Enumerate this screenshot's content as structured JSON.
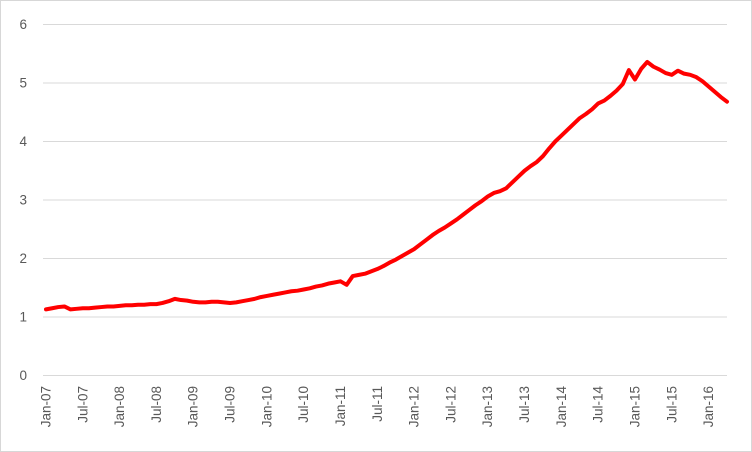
{
  "chart_data": {
    "type": "line",
    "title": "",
    "xlabel": "",
    "ylabel": "",
    "ylim": [
      0,
      6
    ],
    "y_tick_labels": [
      "0",
      "1",
      "2",
      "3",
      "4",
      "5",
      "6"
    ],
    "x_tick_labels": [
      "Jan-07",
      "Jul-07",
      "Jan-08",
      "Jul-08",
      "Jan-09",
      "Jul-09",
      "Jan-10",
      "Jul-10",
      "Jan-11",
      "Jul-11",
      "Jan-12",
      "Jul-12",
      "Jan-13",
      "Jul-13",
      "Jan-14",
      "Jul-14",
      "Jan-15",
      "Jul-15",
      "Jan-16"
    ],
    "x_tick_every_n_points": 6,
    "grid": "horizontal",
    "legend_position": "none",
    "series": [
      {
        "name": "red-line",
        "color": "#ff0000",
        "line_width": 4,
        "start_label": "Jan-07",
        "frequency": "monthly",
        "values": [
          1.13,
          1.15,
          1.17,
          1.18,
          1.13,
          1.14,
          1.15,
          1.15,
          1.16,
          1.17,
          1.18,
          1.18,
          1.19,
          1.2,
          1.2,
          1.21,
          1.21,
          1.22,
          1.22,
          1.24,
          1.27,
          1.31,
          1.29,
          1.28,
          1.26,
          1.25,
          1.25,
          1.26,
          1.26,
          1.25,
          1.24,
          1.25,
          1.27,
          1.29,
          1.31,
          1.34,
          1.36,
          1.38,
          1.4,
          1.42,
          1.44,
          1.45,
          1.47,
          1.49,
          1.52,
          1.54,
          1.57,
          1.59,
          1.61,
          1.55,
          1.7,
          1.72,
          1.74,
          1.78,
          1.82,
          1.87,
          1.93,
          1.98,
          2.04,
          2.1,
          2.16,
          2.24,
          2.32,
          2.4,
          2.47,
          2.53,
          2.6,
          2.67,
          2.75,
          2.83,
          2.91,
          2.98,
          3.06,
          3.12,
          3.15,
          3.2,
          3.3,
          3.4,
          3.5,
          3.58,
          3.65,
          3.75,
          3.88,
          4.0,
          4.1,
          4.2,
          4.3,
          4.4,
          4.47,
          4.55,
          4.65,
          4.7,
          4.78,
          4.87,
          4.98,
          5.22,
          5.06,
          5.24,
          5.36,
          5.28,
          5.23,
          5.17,
          5.14,
          5.21,
          5.16,
          5.14,
          5.1,
          5.03,
          4.94,
          4.85,
          4.76,
          4.68
        ]
      }
    ]
  },
  "style": {
    "gridline_color": "#d9d9d9",
    "axis_line_color": "#d9d9d9",
    "tick_label_color": "#595959",
    "background_color": "#ffffff",
    "border_color": "#d7d7d7"
  }
}
